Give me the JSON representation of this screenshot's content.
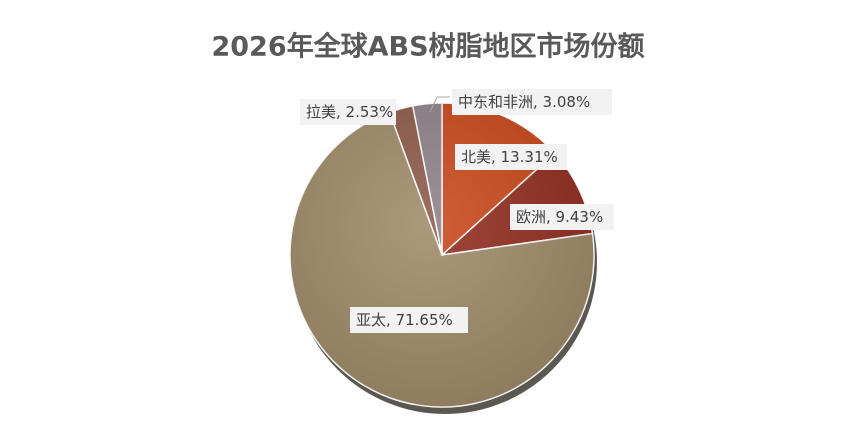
{
  "chart_data": {
    "type": "pie",
    "title": "2026年全球ABS树脂地区市场份额",
    "categories": [
      "北美",
      "欧洲",
      "亚太",
      "拉美",
      "中东和非洲"
    ],
    "values": [
      13.31,
      9.43,
      71.65,
      2.53,
      3.08
    ],
    "value_labels": [
      ", 13.31%",
      ", 9.43%",
      ", 71.65%",
      ", 2.53%",
      ", 3.08%"
    ],
    "colors": [
      "#c9491c",
      "#932e20",
      "#a08b6a",
      "#8e5b4b",
      "#8f8289"
    ]
  }
}
